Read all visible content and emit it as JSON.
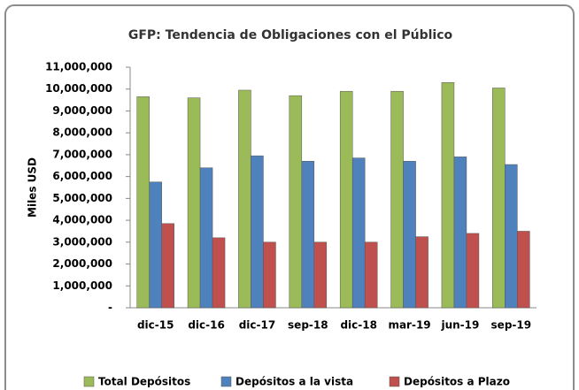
{
  "chart_data": {
    "type": "bar",
    "title": "GFP: Tendencia de Obligaciones con el Público",
    "y_label": "Miles USD",
    "categories": [
      "dic-15",
      "dic-16",
      "dic-17",
      "sep-18",
      "dic-18",
      "mar-19",
      "jun-19",
      "sep-19"
    ],
    "series": [
      {
        "name": "Total Depósitos",
        "color": "#9bbb59",
        "values": [
          9650000,
          9600000,
          9950000,
          9700000,
          9900000,
          9900000,
          10300000,
          10050000
        ]
      },
      {
        "name": "Depósitos a la vista",
        "color": "#4f81bd",
        "values": [
          5750000,
          6400000,
          6950000,
          6700000,
          6850000,
          6700000,
          6900000,
          6550000
        ]
      },
      {
        "name": "Depósitos a Plazo",
        "color": "#c0504d",
        "values": [
          3850000,
          3200000,
          3000000,
          3000000,
          3000000,
          3250000,
          3400000,
          3500000
        ]
      }
    ],
    "ylim": [
      0,
      11000000
    ],
    "yticks": [
      {
        "value": 0,
        "label": "-"
      },
      {
        "value": 1000000,
        "label": "1,000,000"
      },
      {
        "value": 2000000,
        "label": "2,000,000"
      },
      {
        "value": 3000000,
        "label": "3,000,000"
      },
      {
        "value": 4000000,
        "label": "4,000,000"
      },
      {
        "value": 5000000,
        "label": "5,000,000"
      },
      {
        "value": 6000000,
        "label": "6,000,000"
      },
      {
        "value": 7000000,
        "label": "7,000,000"
      },
      {
        "value": 8000000,
        "label": "8,000,000"
      },
      {
        "value": 9000000,
        "label": "9,000,000"
      },
      {
        "value": 10000000,
        "label": "10,000,000"
      },
      {
        "value": 11000000,
        "label": "11,000,000"
      }
    ],
    "grid": false,
    "legend": "bottom"
  }
}
